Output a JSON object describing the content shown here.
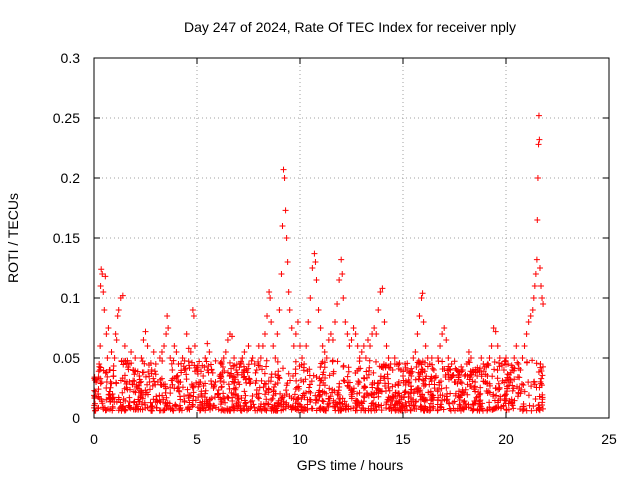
{
  "chart_data": {
    "type": "scatter",
    "title": "Day 247 of 2024, Rate Of TEC Index for receiver nply",
    "xlabel": "GPS time / hours",
    "ylabel": "ROTI / TECUs",
    "xlim": [
      0,
      25
    ],
    "ylim": [
      0,
      0.3
    ],
    "x_ticks": [
      0,
      5,
      10,
      15,
      20,
      25
    ],
    "x_tick_labels": [
      "0",
      "5",
      "10",
      "15",
      "20",
      "25"
    ],
    "y_ticks": [
      0,
      0.05,
      0.1,
      0.15,
      0.2,
      0.25,
      0.3
    ],
    "y_tick_labels": [
      "0",
      "0.05",
      "0.1",
      "0.15",
      "0.2",
      "0.25",
      "0.3"
    ],
    "grid": true,
    "marker": "plus",
    "marker_color": "#ff0000",
    "series": [
      {
        "points": [
          [
            0.05,
            0.012
          ],
          [
            0.1,
            0.03
          ],
          [
            0.15,
            0.008
          ],
          [
            0.2,
            0.02
          ],
          [
            0.25,
            0.045
          ],
          [
            0.3,
            0.06
          ],
          [
            0.32,
            0.11
          ],
          [
            0.35,
            0.124
          ],
          [
            0.4,
            0.12
          ],
          [
            0.45,
            0.105
          ],
          [
            0.5,
            0.09
          ],
          [
            0.55,
            0.118
          ],
          [
            0.6,
            0.07
          ],
          [
            0.65,
            0.05
          ],
          [
            0.7,
            0.075
          ],
          [
            0.75,
            0.04
          ],
          [
            0.8,
            0.03
          ],
          [
            0.85,
            0.055
          ],
          [
            0.9,
            0.02
          ],
          [
            0.95,
            0.035
          ],
          [
            1.0,
            0.05
          ],
          [
            1.05,
            0.07
          ],
          [
            1.1,
            0.065
          ],
          [
            1.15,
            0.085
          ],
          [
            1.2,
            0.09
          ],
          [
            1.3,
            0.1
          ],
          [
            1.4,
            0.102
          ],
          [
            1.5,
            0.06
          ],
          [
            1.6,
            0.03
          ],
          [
            1.7,
            0.045
          ],
          [
            1.8,
            0.055
          ],
          [
            1.9,
            0.04
          ],
          [
            2.0,
            0.05
          ],
          [
            2.1,
            0.025
          ],
          [
            2.2,
            0.035
          ],
          [
            2.3,
            0.05
          ],
          [
            2.4,
            0.065
          ],
          [
            2.5,
            0.072
          ],
          [
            2.6,
            0.06
          ],
          [
            2.7,
            0.03
          ],
          [
            2.8,
            0.04
          ],
          [
            2.9,
            0.055
          ],
          [
            3.0,
            0.045
          ],
          [
            3.1,
            0.03
          ],
          [
            3.2,
            0.05
          ],
          [
            3.3,
            0.055
          ],
          [
            3.4,
            0.06
          ],
          [
            3.5,
            0.07
          ],
          [
            3.55,
            0.085
          ],
          [
            3.6,
            0.075
          ],
          [
            3.7,
            0.05
          ],
          [
            3.8,
            0.04
          ],
          [
            3.9,
            0.06
          ],
          [
            4.0,
            0.055
          ],
          [
            4.1,
            0.045
          ],
          [
            4.2,
            0.03
          ],
          [
            4.3,
            0.05
          ],
          [
            4.4,
            0.04
          ],
          [
            4.5,
            0.07
          ],
          [
            4.6,
            0.058
          ],
          [
            4.7,
            0.055
          ],
          [
            4.8,
            0.09
          ],
          [
            4.85,
            0.085
          ],
          [
            4.9,
            0.06
          ],
          [
            5.0,
            0.04
          ],
          [
            5.1,
            0.03
          ],
          [
            5.2,
            0.02
          ],
          [
            5.3,
            0.035
          ],
          [
            5.4,
            0.05
          ],
          [
            5.5,
            0.062
          ],
          [
            5.6,
            0.055
          ],
          [
            5.7,
            0.04
          ],
          [
            5.8,
            0.025
          ],
          [
            5.9,
            0.03
          ],
          [
            6.0,
            0.02
          ],
          [
            6.1,
            0.035
          ],
          [
            6.2,
            0.045
          ],
          [
            6.3,
            0.05
          ],
          [
            6.4,
            0.055
          ],
          [
            6.5,
            0.065
          ],
          [
            6.6,
            0.07
          ],
          [
            6.7,
            0.068
          ],
          [
            6.8,
            0.05
          ],
          [
            6.9,
            0.04
          ],
          [
            7.0,
            0.03
          ],
          [
            7.1,
            0.045
          ],
          [
            7.2,
            0.05
          ],
          [
            7.3,
            0.055
          ],
          [
            7.4,
            0.04
          ],
          [
            7.5,
            0.06
          ],
          [
            7.6,
            0.03
          ],
          [
            7.7,
            0.05
          ],
          [
            7.8,
            0.045
          ],
          [
            7.9,
            0.04
          ],
          [
            8.0,
            0.06
          ],
          [
            8.1,
            0.05
          ],
          [
            8.2,
            0.06
          ],
          [
            8.3,
            0.07
          ],
          [
            8.4,
            0.085
          ],
          [
            8.5,
            0.105
          ],
          [
            8.55,
            0.1
          ],
          [
            8.6,
            0.08
          ],
          [
            8.7,
            0.06
          ],
          [
            8.8,
            0.05
          ],
          [
            8.9,
            0.07
          ],
          [
            9.0,
            0.09
          ],
          [
            9.1,
            0.12
          ],
          [
            9.15,
            0.16
          ],
          [
            9.2,
            0.207
          ],
          [
            9.25,
            0.2
          ],
          [
            9.3,
            0.173
          ],
          [
            9.35,
            0.15
          ],
          [
            9.4,
            0.13
          ],
          [
            9.45,
            0.105
          ],
          [
            9.5,
            0.09
          ],
          [
            9.6,
            0.075
          ],
          [
            9.7,
            0.06
          ],
          [
            9.8,
            0.07
          ],
          [
            9.9,
            0.08
          ],
          [
            10.0,
            0.06
          ],
          [
            10.1,
            0.05
          ],
          [
            10.2,
            0.045
          ],
          [
            10.3,
            0.06
          ],
          [
            10.4,
            0.08
          ],
          [
            10.5,
            0.1
          ],
          [
            10.6,
            0.125
          ],
          [
            10.7,
            0.137
          ],
          [
            10.75,
            0.13
          ],
          [
            10.8,
            0.115
          ],
          [
            10.9,
            0.09
          ],
          [
            11.0,
            0.075
          ],
          [
            11.1,
            0.06
          ],
          [
            11.2,
            0.055
          ],
          [
            11.3,
            0.05
          ],
          [
            11.4,
            0.065
          ],
          [
            11.5,
            0.07
          ],
          [
            11.6,
            0.065
          ],
          [
            11.7,
            0.08
          ],
          [
            11.8,
            0.095
          ],
          [
            11.9,
            0.115
          ],
          [
            12.0,
            0.132
          ],
          [
            12.05,
            0.12
          ],
          [
            12.1,
            0.1
          ],
          [
            12.2,
            0.08
          ],
          [
            12.3,
            0.07
          ],
          [
            12.4,
            0.06
          ],
          [
            12.5,
            0.065
          ],
          [
            12.6,
            0.075
          ],
          [
            12.7,
            0.07
          ],
          [
            12.8,
            0.06
          ],
          [
            12.9,
            0.05
          ],
          [
            13.0,
            0.055
          ],
          [
            13.1,
            0.06
          ],
          [
            13.2,
            0.05
          ],
          [
            13.3,
            0.065
          ],
          [
            13.4,
            0.06
          ],
          [
            13.5,
            0.07
          ],
          [
            13.6,
            0.075
          ],
          [
            13.7,
            0.07
          ],
          [
            13.8,
            0.09
          ],
          [
            13.9,
            0.105
          ],
          [
            14.0,
            0.108
          ],
          [
            14.1,
            0.08
          ],
          [
            14.2,
            0.06
          ],
          [
            14.3,
            0.05
          ],
          [
            14.4,
            0.045
          ],
          [
            14.5,
            0.04
          ],
          [
            14.6,
            0.05
          ],
          [
            14.7,
            0.045
          ],
          [
            14.8,
            0.03
          ],
          [
            14.9,
            0.04
          ],
          [
            15.0,
            0.035
          ],
          [
            15.1,
            0.045
          ],
          [
            15.2,
            0.04
          ],
          [
            15.3,
            0.03
          ],
          [
            15.4,
            0.035
          ],
          [
            15.5,
            0.05
          ],
          [
            15.6,
            0.055
          ],
          [
            15.7,
            0.07
          ],
          [
            15.8,
            0.085
          ],
          [
            15.9,
            0.1
          ],
          [
            15.95,
            0.104
          ],
          [
            16.0,
            0.08
          ],
          [
            16.1,
            0.06
          ],
          [
            16.2,
            0.05
          ],
          [
            16.3,
            0.045
          ],
          [
            16.4,
            0.05
          ],
          [
            16.5,
            0.04
          ],
          [
            16.6,
            0.035
          ],
          [
            16.7,
            0.05
          ],
          [
            16.8,
            0.06
          ],
          [
            16.9,
            0.07
          ],
          [
            17.0,
            0.075
          ],
          [
            17.1,
            0.065
          ],
          [
            17.2,
            0.05
          ],
          [
            17.3,
            0.04
          ],
          [
            17.4,
            0.035
          ],
          [
            17.5,
            0.03
          ],
          [
            17.6,
            0.04
          ],
          [
            17.7,
            0.035
          ],
          [
            17.8,
            0.03
          ],
          [
            17.9,
            0.04
          ],
          [
            18.0,
            0.035
          ],
          [
            18.1,
            0.045
          ],
          [
            18.2,
            0.055
          ],
          [
            18.3,
            0.05
          ],
          [
            18.4,
            0.04
          ],
          [
            18.5,
            0.03
          ],
          [
            18.6,
            0.035
          ],
          [
            18.7,
            0.04
          ],
          [
            18.8,
            0.05
          ],
          [
            18.9,
            0.045
          ],
          [
            19.0,
            0.03
          ],
          [
            19.1,
            0.035
          ],
          [
            19.2,
            0.05
          ],
          [
            19.3,
            0.06
          ],
          [
            19.4,
            0.075
          ],
          [
            19.5,
            0.072
          ],
          [
            19.6,
            0.06
          ],
          [
            19.7,
            0.05
          ],
          [
            19.8,
            0.045
          ],
          [
            19.9,
            0.04
          ],
          [
            20.0,
            0.05
          ],
          [
            20.1,
            0.045
          ],
          [
            20.2,
            0.03
          ],
          [
            20.3,
            0.04
          ],
          [
            20.4,
            0.05
          ],
          [
            20.5,
            0.06
          ],
          [
            20.6,
            0.045
          ],
          [
            20.7,
            0.04
          ],
          [
            20.8,
            0.05
          ],
          [
            20.9,
            0.06
          ],
          [
            21.0,
            0.07
          ],
          [
            21.1,
            0.08
          ],
          [
            21.2,
            0.085
          ],
          [
            21.3,
            0.09
          ],
          [
            21.35,
            0.1
          ],
          [
            21.4,
            0.11
          ],
          [
            21.45,
            0.12
          ],
          [
            21.5,
            0.132
          ],
          [
            21.52,
            0.165
          ],
          [
            21.55,
            0.2
          ],
          [
            21.58,
            0.228
          ],
          [
            21.6,
            0.252
          ],
          [
            21.62,
            0.232
          ],
          [
            21.65,
            0.125
          ],
          [
            21.7,
            0.11
          ],
          [
            21.75,
            0.1
          ],
          [
            21.8,
            0.095
          ]
        ]
      }
    ]
  }
}
